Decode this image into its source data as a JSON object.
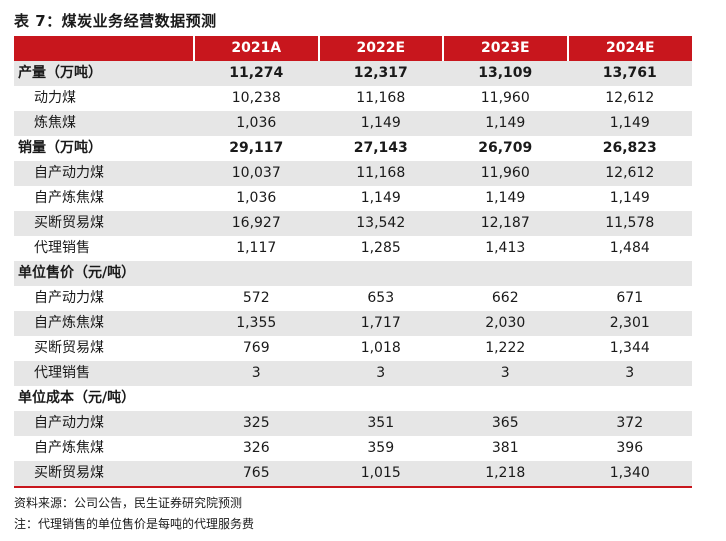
{
  "title": "表 7：煤炭业务经营数据预测",
  "header": {
    "label": "",
    "cols": [
      "2021A",
      "2022E",
      "2023E",
      "2024E"
    ]
  },
  "rows": [
    {
      "label": "产量（万吨）",
      "type": "section",
      "values": [
        "11,274",
        "12,317",
        "13,109",
        "13,761"
      ]
    },
    {
      "label": "动力煤",
      "type": "sub",
      "values": [
        "10,238",
        "11,168",
        "11,960",
        "12,612"
      ]
    },
    {
      "label": "炼焦煤",
      "type": "sub",
      "values": [
        "1,036",
        "1,149",
        "1,149",
        "1,149"
      ]
    },
    {
      "label": "销量（万吨）",
      "type": "section",
      "values": [
        "29,117",
        "27,143",
        "26,709",
        "26,823"
      ]
    },
    {
      "label": "自产动力煤",
      "type": "sub",
      "values": [
        "10,037",
        "11,168",
        "11,960",
        "12,612"
      ]
    },
    {
      "label": "自产炼焦煤",
      "type": "sub",
      "values": [
        "1,036",
        "1,149",
        "1,149",
        "1,149"
      ]
    },
    {
      "label": "买断贸易煤",
      "type": "sub",
      "values": [
        "16,927",
        "13,542",
        "12,187",
        "11,578"
      ]
    },
    {
      "label": "代理销售",
      "type": "sub",
      "values": [
        "1,117",
        "1,285",
        "1,413",
        "1,484"
      ]
    },
    {
      "label": "单位售价（元/吨）",
      "type": "section",
      "values": [
        "",
        "",
        "",
        ""
      ]
    },
    {
      "label": "自产动力煤",
      "type": "sub",
      "values": [
        "572",
        "653",
        "662",
        "671"
      ]
    },
    {
      "label": "自产炼焦煤",
      "type": "sub",
      "values": [
        "1,355",
        "1,717",
        "2,030",
        "2,301"
      ]
    },
    {
      "label": "买断贸易煤",
      "type": "sub",
      "values": [
        "769",
        "1,018",
        "1,222",
        "1,344"
      ]
    },
    {
      "label": "代理销售",
      "type": "sub",
      "values": [
        "3",
        "3",
        "3",
        "3"
      ]
    },
    {
      "label": "单位成本（元/吨）",
      "type": "section",
      "values": [
        "",
        "",
        "",
        ""
      ]
    },
    {
      "label": "自产动力煤",
      "type": "sub",
      "values": [
        "325",
        "351",
        "365",
        "372"
      ]
    },
    {
      "label": "自产炼焦煤",
      "type": "sub",
      "values": [
        "326",
        "359",
        "381",
        "396"
      ]
    },
    {
      "label": "买断贸易煤",
      "type": "sub",
      "values": [
        "765",
        "1,015",
        "1,218",
        "1,340"
      ]
    }
  ],
  "notes": {
    "source": "资料来源：公司公告，民生证券研究院预测",
    "remark": "注：代理销售的单位售价是每吨的代理服务费"
  },
  "colors": {
    "header_bg": "#c8161d",
    "stripe_bg": "#e6e6e6"
  }
}
